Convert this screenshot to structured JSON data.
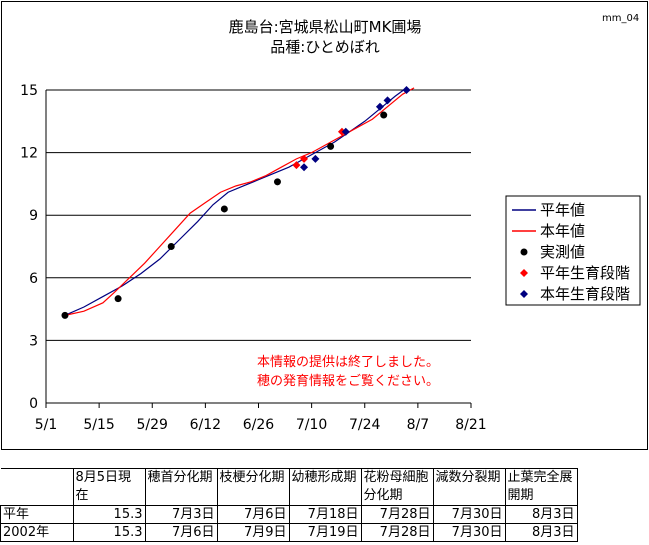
{
  "chart_data": {
    "type": "line",
    "title_line1": "鹿島台:宮城県松山町MK圃場",
    "title_line2": "品種:ひとめぼれ",
    "corner_code": "mm_04",
    "x_tick_labels": [
      "5/1",
      "5/15",
      "5/29",
      "6/12",
      "6/26",
      "7/10",
      "7/24",
      "8/7",
      "8/21"
    ],
    "x_tick_days": [
      0,
      14,
      28,
      42,
      56,
      70,
      84,
      98,
      112
    ],
    "ylim": [
      0,
      15
    ],
    "y_ticks": [
      0,
      3,
      6,
      9,
      12,
      15
    ],
    "grid": "horizontal",
    "legend_position": "right",
    "series": [
      {
        "name": "平年値",
        "kind": "line",
        "color": "#000080",
        "points": [
          [
            5,
            4.2
          ],
          [
            10,
            4.6
          ],
          [
            15,
            5.1
          ],
          [
            20,
            5.6
          ],
          [
            25,
            6.2
          ],
          [
            30,
            6.9
          ],
          [
            35,
            7.8
          ],
          [
            40,
            8.7
          ],
          [
            44,
            9.5
          ],
          [
            48,
            10.1
          ],
          [
            52,
            10.4
          ],
          [
            56,
            10.7
          ],
          [
            60,
            11.0
          ],
          [
            64,
            11.3
          ],
          [
            68,
            11.7
          ],
          [
            72,
            12.1
          ],
          [
            76,
            12.5
          ],
          [
            80,
            13.0
          ],
          [
            84,
            13.5
          ],
          [
            88,
            14.1
          ],
          [
            92,
            14.7
          ],
          [
            95,
            15.1
          ]
        ]
      },
      {
        "name": "本年値",
        "kind": "line",
        "color": "#ff0000",
        "points": [
          [
            5,
            4.2
          ],
          [
            10,
            4.4
          ],
          [
            15,
            4.8
          ],
          [
            18,
            5.3
          ],
          [
            22,
            6.0
          ],
          [
            26,
            6.7
          ],
          [
            30,
            7.5
          ],
          [
            34,
            8.3
          ],
          [
            38,
            9.1
          ],
          [
            42,
            9.6
          ],
          [
            46,
            10.1
          ],
          [
            50,
            10.4
          ],
          [
            54,
            10.6
          ],
          [
            58,
            10.9
          ],
          [
            62,
            11.3
          ],
          [
            66,
            11.7
          ],
          [
            70,
            12.0
          ],
          [
            74,
            12.4
          ],
          [
            78,
            12.8
          ],
          [
            82,
            13.2
          ],
          [
            86,
            13.6
          ],
          [
            90,
            14.2
          ],
          [
            94,
            14.8
          ],
          [
            97,
            15.1
          ]
        ]
      },
      {
        "name": "実測値",
        "kind": "marker",
        "marker": "circle",
        "color": "#000000",
        "points": [
          [
            5,
            4.2
          ],
          [
            19,
            5.0
          ],
          [
            33,
            7.5
          ],
          [
            47,
            9.3
          ],
          [
            61,
            10.6
          ],
          [
            75,
            12.3
          ],
          [
            89,
            13.8
          ]
        ]
      },
      {
        "name": "平年生育段階",
        "kind": "marker",
        "marker": "diamond",
        "color": "#ff0000",
        "points": [
          [
            66,
            11.4
          ],
          [
            68,
            11.7
          ],
          [
            78,
            13.0
          ]
        ]
      },
      {
        "name": "本年生育段階",
        "kind": "marker",
        "marker": "diamond",
        "color": "#000080",
        "points": [
          [
            68,
            11.3
          ],
          [
            71,
            11.7
          ],
          [
            79,
            13.0
          ],
          [
            88,
            14.2
          ],
          [
            90,
            14.5
          ],
          [
            95,
            15.0
          ]
        ]
      }
    ],
    "annotation": [
      "本情報の提供は終了しました。",
      "穂の発育情報をご覧ください。"
    ]
  },
  "stage_table": {
    "headers": [
      "8月5日現在",
      "穂首分化期",
      "枝梗分化期",
      "幼穂形成期",
      "花粉母細胞分化期",
      "減数分裂期",
      "止葉完全展開期"
    ],
    "rows": [
      {
        "label": "平年",
        "values": [
          "15.3",
          "7月3日",
          "7月6日",
          "7月18日",
          "7月28日",
          "7月30日",
          "8月3日"
        ]
      },
      {
        "label": "2002年",
        "values": [
          "15.3",
          "7月6日",
          "7月9日",
          "7月19日",
          "7月28日",
          "7月30日",
          "8月3日"
        ]
      }
    ]
  }
}
